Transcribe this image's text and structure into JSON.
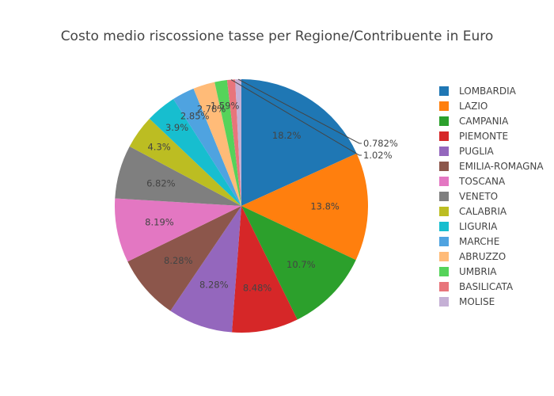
{
  "chart_data": {
    "type": "pie",
    "title": "Costo medio riscossione tasse per Regione/Contribuente in Euro",
    "legend_position": "right",
    "direction": "clockwise",
    "start": "top",
    "slices": [
      {
        "label": "LOMBARDIA",
        "percent": 18.2,
        "text": "18.2%",
        "color": "#1f77b4"
      },
      {
        "label": "LAZIO",
        "percent": 13.8,
        "text": "13.8%",
        "color": "#ff7f0e"
      },
      {
        "label": "CAMPANIA",
        "percent": 10.7,
        "text": "10.7%",
        "color": "#2ca02c"
      },
      {
        "label": "PIEMONTE",
        "percent": 8.48,
        "text": "8.48%",
        "color": "#d62728"
      },
      {
        "label": "PUGLIA",
        "percent": 8.28,
        "text": "8.28%",
        "color": "#9467bd"
      },
      {
        "label": "EMILIA-ROMAGNA",
        "percent": 8.28,
        "text": "8.28%",
        "color": "#8c564b"
      },
      {
        "label": "TOSCANA",
        "percent": 8.19,
        "text": "8.19%",
        "color": "#e377c2"
      },
      {
        "label": "VENETO",
        "percent": 6.82,
        "text": "6.82%",
        "color": "#7f7f7f"
      },
      {
        "label": "CALABRIA",
        "percent": 4.3,
        "text": "4.3%",
        "color": "#bcbd22"
      },
      {
        "label": "LIGURIA",
        "percent": 3.9,
        "text": "3.9%",
        "color": "#17becf"
      },
      {
        "label": "MARCHE",
        "percent": 2.85,
        "text": "2.85%",
        "color": "#4fa3e0"
      },
      {
        "label": "ABRUZZO",
        "percent": 2.78,
        "text": "2.78%",
        "color": "#ffbb78"
      },
      {
        "label": "UMBRIA",
        "percent": 1.59,
        "text": "1.59%",
        "color": "#55d35a"
      },
      {
        "label": "BASILICATA",
        "percent": 1.02,
        "text": "1.02%",
        "color": "#e8757b"
      },
      {
        "label": "MOLISE",
        "percent": 0.782,
        "text": "0.782%",
        "color": "#c5b0d5"
      }
    ]
  }
}
